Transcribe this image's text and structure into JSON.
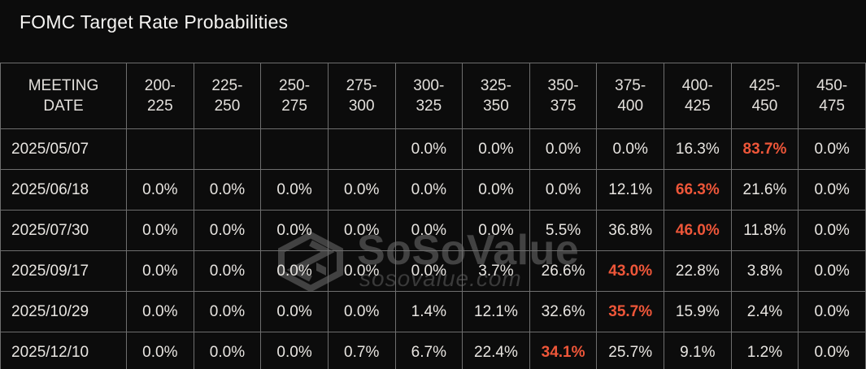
{
  "title": "FOMC Target Rate Probabilities",
  "watermark": {
    "brand": "SoSoValue",
    "domain": "sosovalue.com",
    "logo_icon": "sosovalue-cube-logo"
  },
  "colors": {
    "background": "#0c0c0c",
    "grid_line": "#6e6e6e",
    "text": "#e8e5e1",
    "highlight": "#ee5639",
    "title_text": "#f6f5f3",
    "watermark_gray": "#424242"
  },
  "chart_data": {
    "type": "table",
    "title": "FOMC Target Rate Probabilities",
    "columns": [
      "MEETING DATE",
      "200-225",
      "225-250",
      "250-275",
      "275-300",
      "300-325",
      "325-350",
      "350-375",
      "375-400",
      "400-425",
      "425-450",
      "450-475"
    ],
    "header_display": [
      "MEETING\nDATE",
      "200-\n225",
      "225-\n250",
      "250-\n275",
      "275-\n300",
      "300-\n325",
      "325-\n350",
      "350-\n375",
      "375-\n400",
      "400-\n425",
      "425-\n450",
      "450-\n475"
    ],
    "rows": [
      {
        "date": "2025/05/07",
        "values": [
          "",
          "",
          "",
          "",
          "0.0%",
          "0.0%",
          "0.0%",
          "0.0%",
          "16.3%",
          "83.7%",
          "0.0%"
        ],
        "highlight_col": 9
      },
      {
        "date": "2025/06/18",
        "values": [
          "0.0%",
          "0.0%",
          "0.0%",
          "0.0%",
          "0.0%",
          "0.0%",
          "0.0%",
          "12.1%",
          "66.3%",
          "21.6%",
          "0.0%"
        ],
        "highlight_col": 8
      },
      {
        "date": "2025/07/30",
        "values": [
          "0.0%",
          "0.0%",
          "0.0%",
          "0.0%",
          "0.0%",
          "0.0%",
          "5.5%",
          "36.8%",
          "46.0%",
          "11.8%",
          "0.0%"
        ],
        "highlight_col": 8
      },
      {
        "date": "2025/09/17",
        "values": [
          "0.0%",
          "0.0%",
          "0.0%",
          "0.0%",
          "0.0%",
          "3.7%",
          "26.6%",
          "43.0%",
          "22.8%",
          "3.8%",
          "0.0%"
        ],
        "highlight_col": 7
      },
      {
        "date": "2025/10/29",
        "values": [
          "0.0%",
          "0.0%",
          "0.0%",
          "0.0%",
          "1.4%",
          "12.1%",
          "32.6%",
          "35.7%",
          "15.9%",
          "2.4%",
          "0.0%"
        ],
        "highlight_col": 7
      },
      {
        "date": "2025/12/10",
        "values": [
          "0.0%",
          "0.0%",
          "0.0%",
          "0.7%",
          "6.7%",
          "22.4%",
          "34.1%",
          "25.7%",
          "9.1%",
          "1.2%",
          "0.0%"
        ],
        "highlight_col": 6
      }
    ],
    "layout_hints": {
      "grid": true,
      "highlight_style": "orange bold = highest probability in row",
      "empty_cells_row_1_cols": [
        "200-225",
        "225-250",
        "250-275",
        "275-300"
      ]
    }
  }
}
